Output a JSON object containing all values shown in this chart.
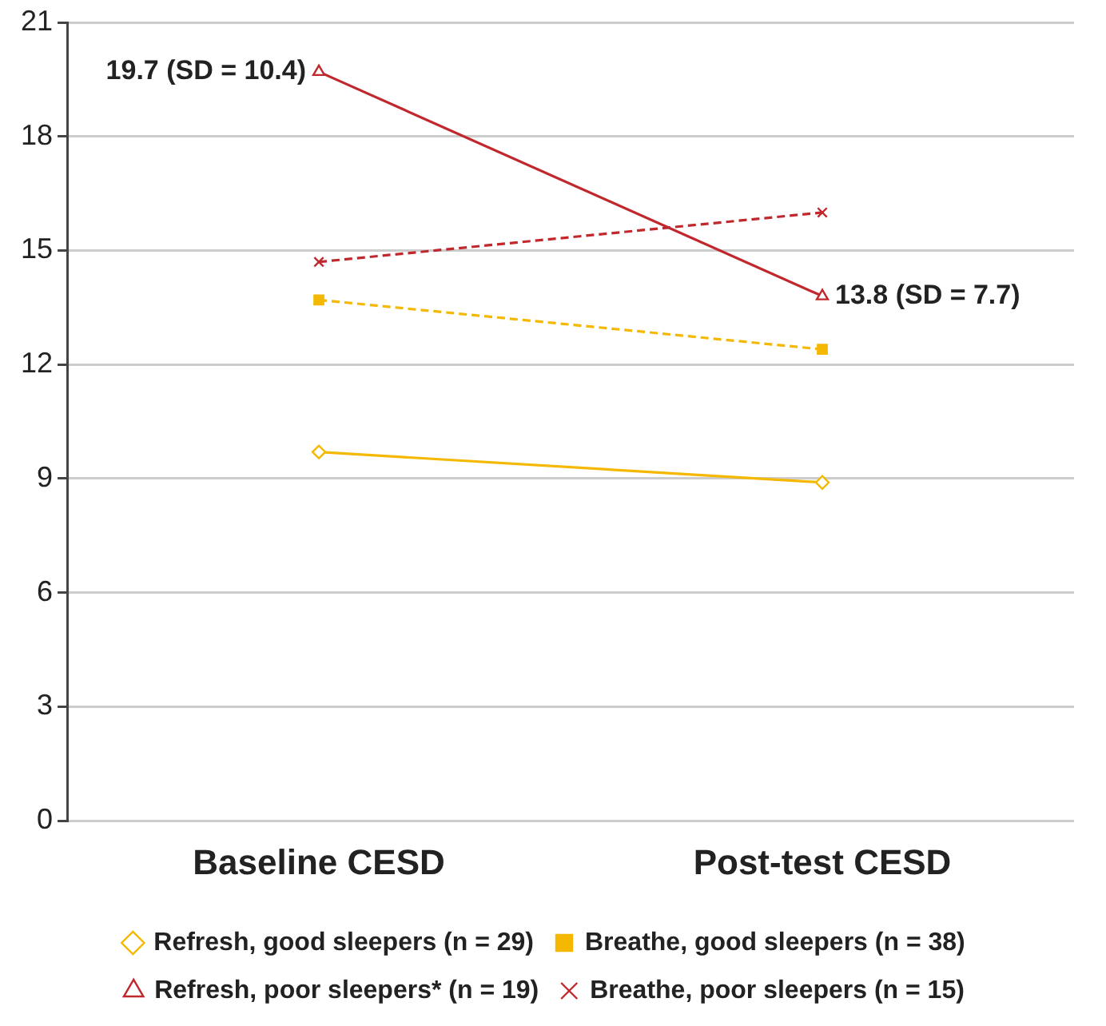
{
  "chart_data": {
    "type": "line",
    "categories": [
      "Baseline CESD",
      "Post-test CESD"
    ],
    "series": [
      {
        "name": "Refresh, good sleepers (n = 29)",
        "color": "#f5b800",
        "values": [
          9.7,
          8.9
        ],
        "marker": "diamond",
        "line_style": "solid"
      },
      {
        "name": "Breathe, good sleepers (n = 38)",
        "color": "#f5b800",
        "values": [
          13.7,
          12.4
        ],
        "marker": "square",
        "line_style": "dashed"
      },
      {
        "name": "Refresh, poor sleepers* (n = 19)",
        "color": "#c0282d",
        "values": [
          19.7,
          13.8
        ],
        "marker": "triangle",
        "line_style": "solid"
      },
      {
        "name": "Breathe, poor sleepers (n = 15)",
        "color": "#c0282d",
        "values": [
          14.7,
          16.0
        ],
        "marker": "cross",
        "line_style": "dashed"
      }
    ],
    "annotations": [
      {
        "text": "19.7 (SD = 10.4)",
        "x": "Baseline CESD",
        "y": 19.7
      },
      {
        "text": "13.8 (SD = 7.7)",
        "x": "Post-test CESD",
        "y": 13.8
      }
    ],
    "ylim": [
      0,
      21
    ],
    "yticks": [
      0,
      3,
      6,
      9,
      12,
      15,
      18,
      21
    ],
    "grid": "y",
    "legend": "bottom"
  }
}
